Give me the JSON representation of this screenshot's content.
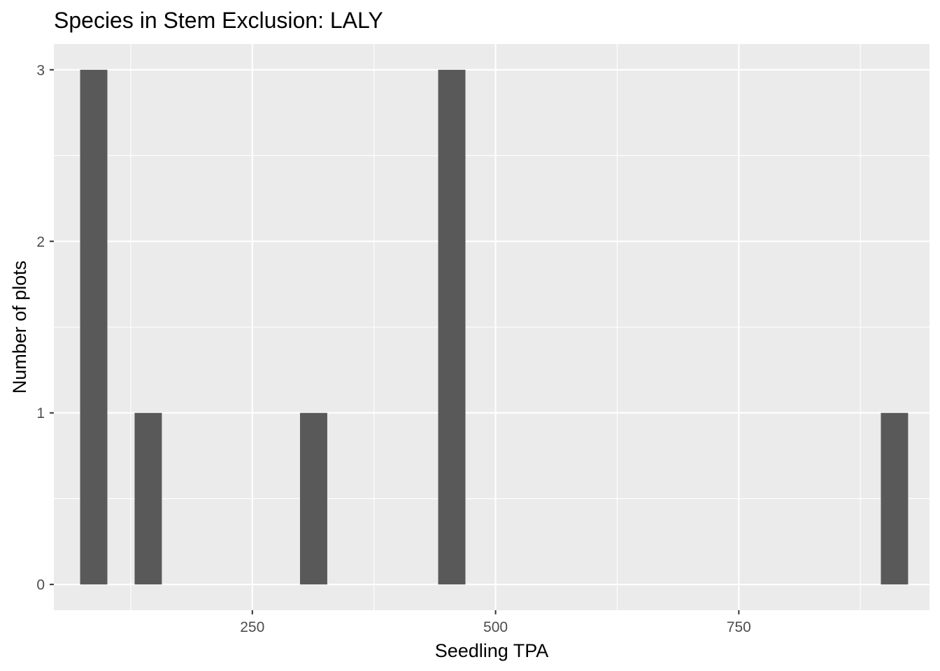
{
  "chart_data": {
    "type": "bar",
    "title": "Species in Stem Exclusion: LALY",
    "xlabel": "Seedling TPA",
    "ylabel": "Number of plots",
    "xlim": [
      46,
      946
    ],
    "ylim": [
      -0.15,
      3.15
    ],
    "x_ticks": [
      250,
      500,
      750
    ],
    "x_tick_labels": [
      "250",
      "500",
      "750"
    ],
    "x_minor_ticks": [
      125,
      375,
      625,
      875
    ],
    "y_ticks": [
      0,
      1,
      2,
      3
    ],
    "y_tick_labels": [
      "0",
      "1",
      "2",
      "3"
    ],
    "y_minor_ticks": [
      0.5,
      1.5,
      2.5
    ],
    "bin_width": 28,
    "bars": [
      {
        "x": 87,
        "count": 3
      },
      {
        "x": 143,
        "count": 1
      },
      {
        "x": 313,
        "count": 1
      },
      {
        "x": 455,
        "count": 3
      },
      {
        "x": 910,
        "count": 1
      }
    ],
    "colors": {
      "panel_background": "#ebebeb",
      "grid": "#ffffff",
      "bar_fill": "#595959",
      "tick_text": "#4d4d4d",
      "tick_mark": "#333333"
    },
    "grid": true,
    "legend": "none"
  }
}
